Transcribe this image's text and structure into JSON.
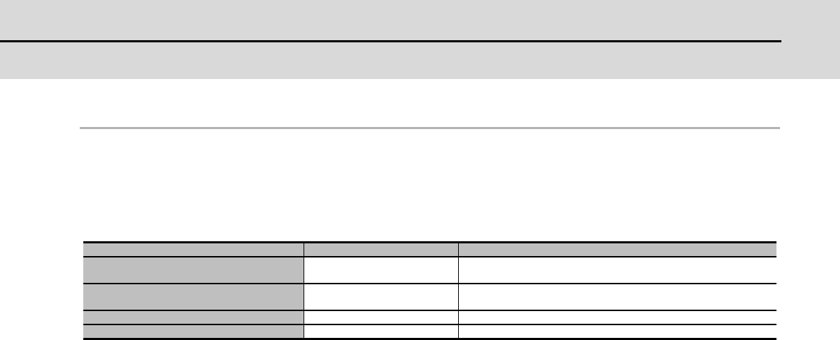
{
  "colors": {
    "header_band": "#d9d9d9",
    "header_rule": "#000000",
    "section_rule": "#b3b3b3",
    "table_shade": "#bfbfbf"
  },
  "table": {
    "rows": [
      [
        "",
        "",
        ""
      ],
      [
        "",
        "",
        ""
      ],
      [
        "",
        "",
        ""
      ],
      [
        "",
        "",
        ""
      ],
      [
        "",
        "",
        ""
      ]
    ]
  }
}
